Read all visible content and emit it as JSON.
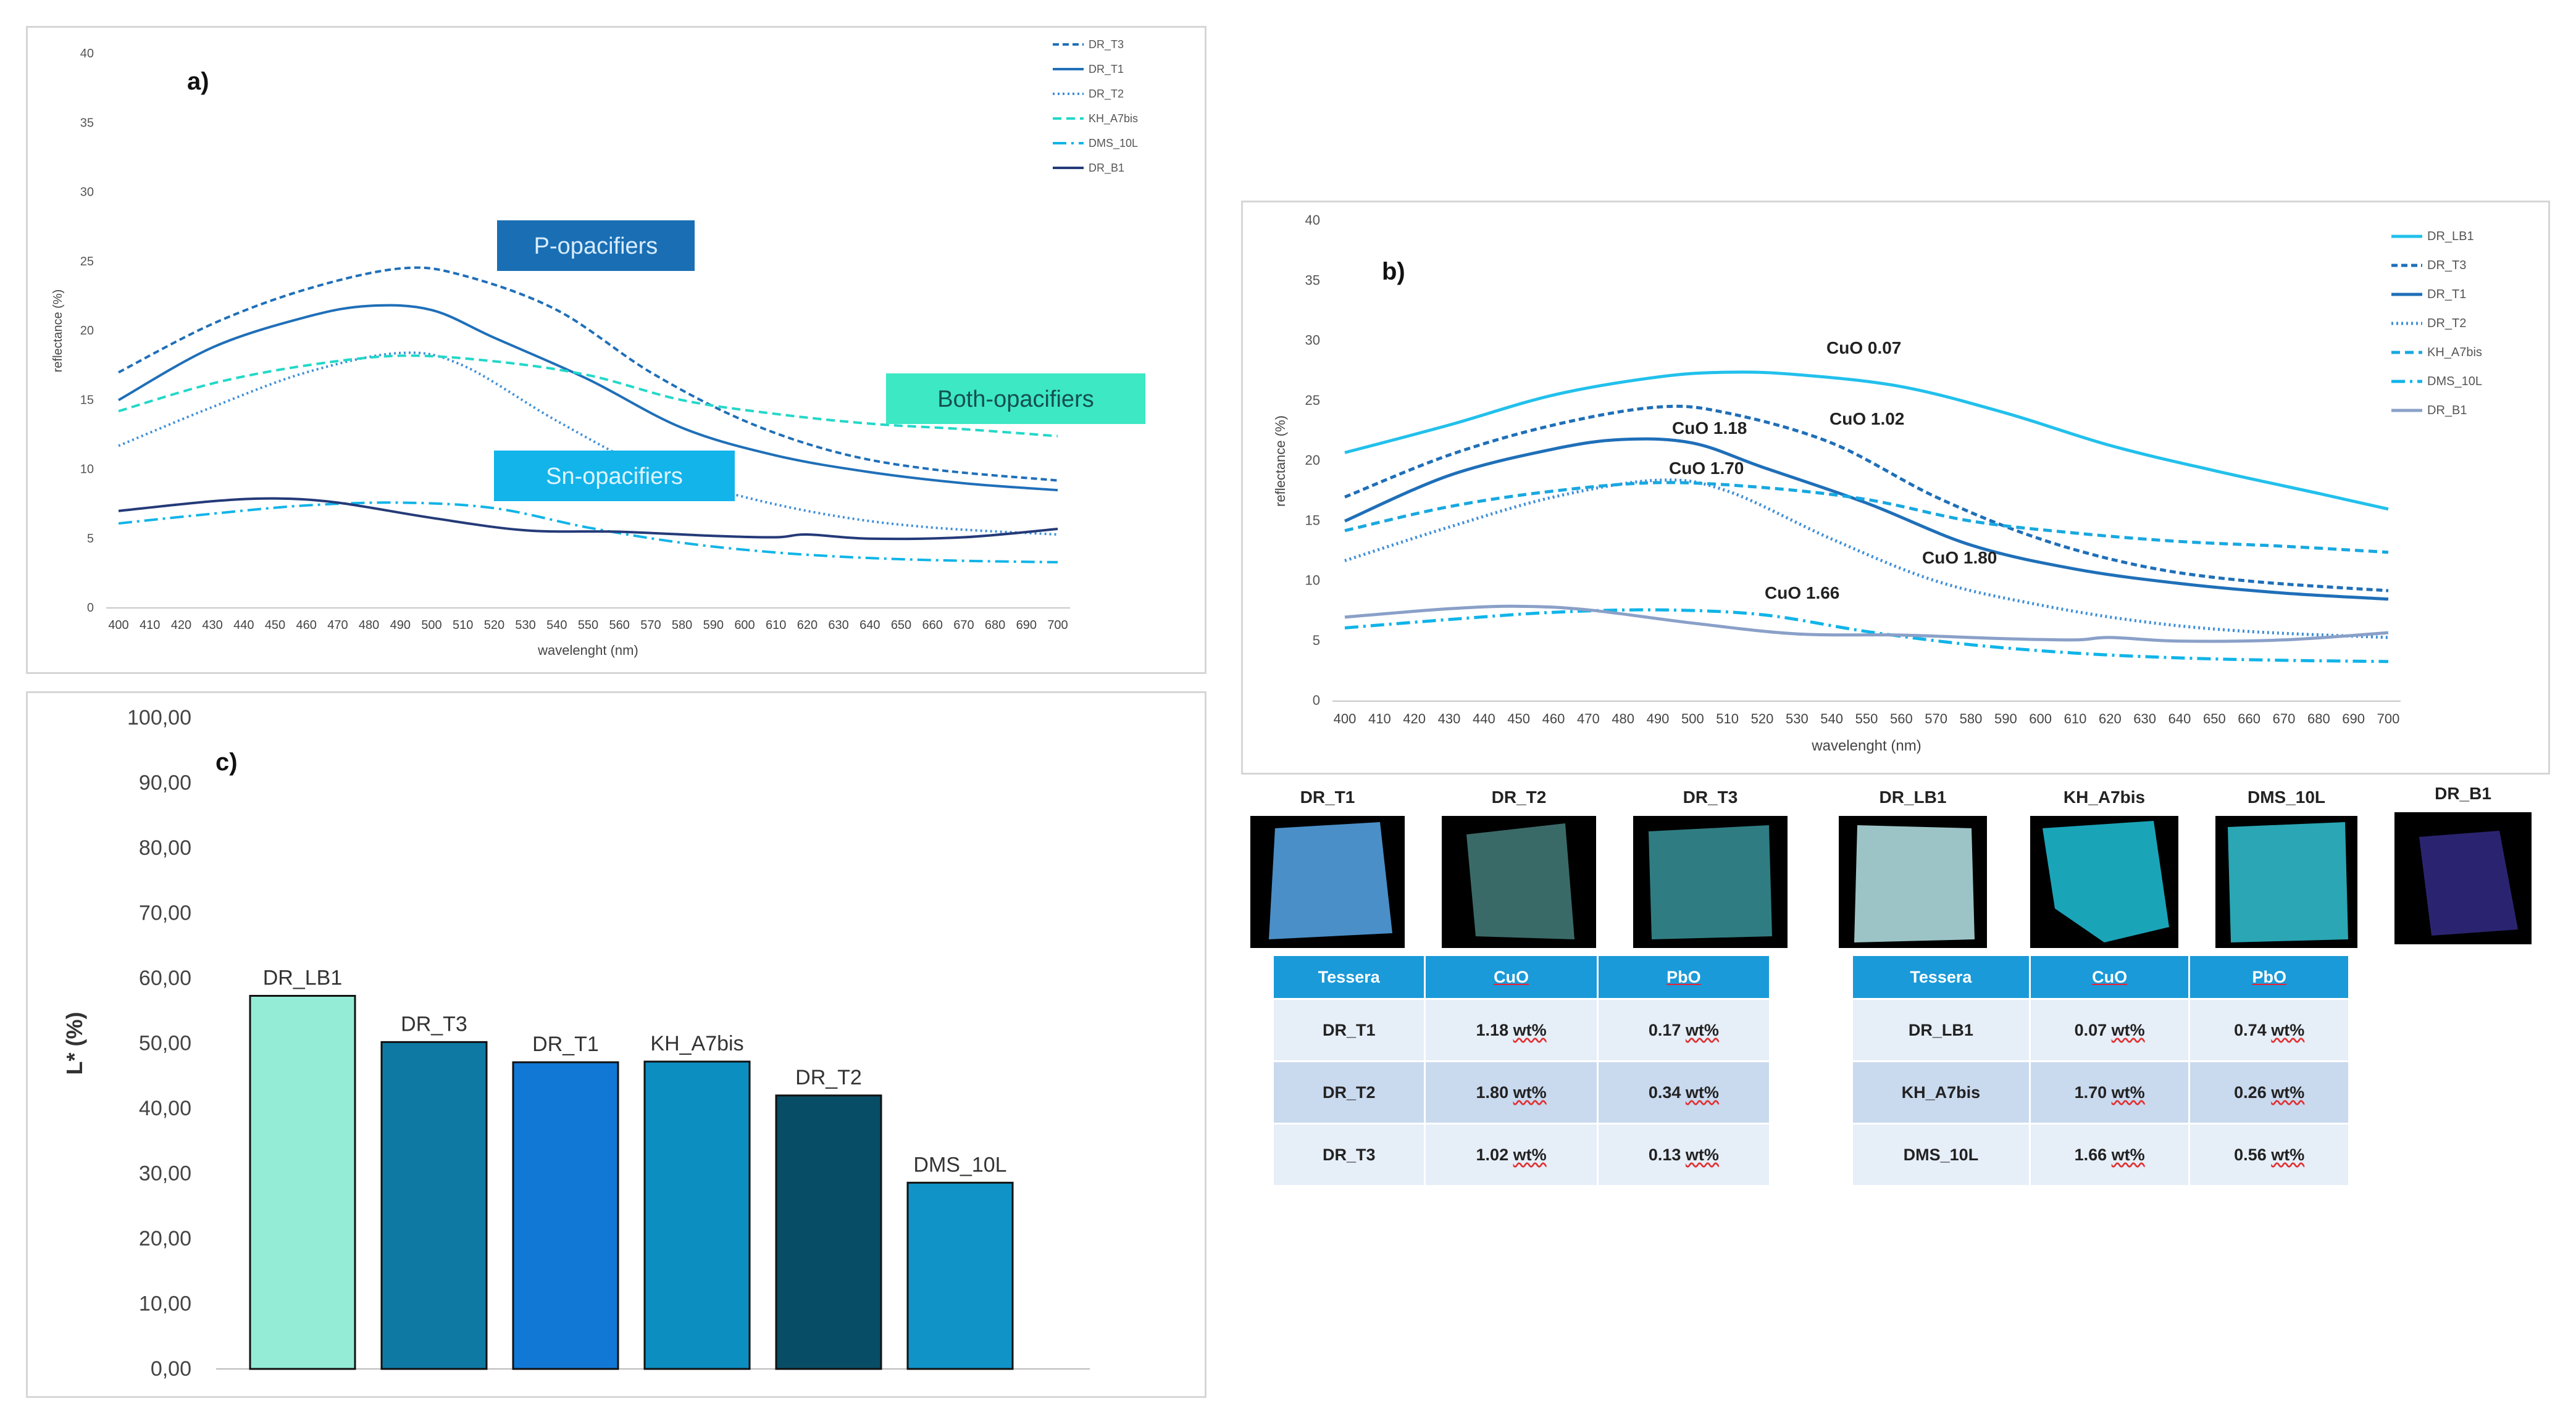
{
  "chart_data": [
    {
      "id": "a",
      "type": "line",
      "panel_label": "a)",
      "xlabel": "wavelenght (nm)",
      "ylabel": "reflectance (%)",
      "ylim": [
        0,
        40
      ],
      "yticks": [
        "0",
        "5",
        "10",
        "15",
        "20",
        "25",
        "30",
        "35",
        "40"
      ],
      "x": [
        400,
        410,
        420,
        430,
        440,
        450,
        460,
        470,
        480,
        490,
        500,
        510,
        520,
        530,
        540,
        550,
        560,
        570,
        580,
        590,
        600,
        610,
        620,
        630,
        640,
        650,
        660,
        670,
        680,
        690,
        700
      ],
      "legend": [
        "DR_T3",
        "DR_T1",
        "DR_T2",
        "KH_A7bis",
        "DMS_10L",
        "DR_B1"
      ],
      "annotations": [
        "P-opacifiers",
        "Both-opacifiers",
        "Sn-opacifiers"
      ],
      "series": [
        {
          "name": "DR_T3",
          "color": "#1f6fb8",
          "dash": "10 6",
          "values": [
            [
              400,
              17
            ],
            [
              430,
              20.5
            ],
            [
              460,
              23
            ],
            [
              490,
              24.5
            ],
            [
              510,
              24
            ],
            [
              540,
              21.5
            ],
            [
              570,
              17
            ],
            [
              600,
              13.5
            ],
            [
              630,
              11.2
            ],
            [
              660,
              10
            ],
            [
              700,
              9.2
            ]
          ]
        },
        {
          "name": "DR_T1",
          "color": "#1f6fb8",
          "dash": "",
          "values": [
            [
              400,
              15
            ],
            [
              430,
              18.8
            ],
            [
              460,
              21
            ],
            [
              480,
              21.8
            ],
            [
              500,
              21.5
            ],
            [
              520,
              19.5
            ],
            [
              550,
              16.5
            ],
            [
              580,
              13
            ],
            [
              610,
              11
            ],
            [
              640,
              9.8
            ],
            [
              670,
              9
            ],
            [
              700,
              8.5
            ]
          ]
        },
        {
          "name": "DR_T2",
          "color": "#3f8fd8",
          "dash": "3 5",
          "values": [
            [
              400,
              11.7
            ],
            [
              430,
              14.5
            ],
            [
              460,
              17
            ],
            [
              490,
              18.4
            ],
            [
              510,
              17.5
            ],
            [
              540,
              13.5
            ],
            [
              570,
              10
            ],
            [
              600,
              8
            ],
            [
              630,
              6.6
            ],
            [
              660,
              5.8
            ],
            [
              700,
              5.3
            ]
          ]
        },
        {
          "name": "KH_A7bis",
          "color": "#22d8c8",
          "dash": "14 8",
          "values": [
            [
              400,
              14.2
            ],
            [
              430,
              16.2
            ],
            [
              460,
              17.5
            ],
            [
              490,
              18.2
            ],
            [
              520,
              17.8
            ],
            [
              550,
              16.8
            ],
            [
              580,
              15
            ],
            [
              610,
              14
            ],
            [
              640,
              13.3
            ],
            [
              670,
              12.9
            ],
            [
              700,
              12.4
            ]
          ]
        },
        {
          "name": "DMS_10L",
          "color": "#10b4e8",
          "dash": "22 8 4 8",
          "values": [
            [
              400,
              6.1
            ],
            [
              430,
              6.8
            ],
            [
              460,
              7.4
            ],
            [
              490,
              7.6
            ],
            [
              520,
              7.2
            ],
            [
              550,
              5.8
            ],
            [
              580,
              4.7
            ],
            [
              610,
              4
            ],
            [
              640,
              3.6
            ],
            [
              670,
              3.4
            ],
            [
              700,
              3.3
            ]
          ]
        },
        {
          "name": "DR_B1",
          "color": "#243a78",
          "dash": "",
          "values": [
            [
              400,
              7
            ],
            [
              430,
              7.7
            ],
            [
              450,
              7.9
            ],
            [
              470,
              7.6
            ],
            [
              500,
              6.5
            ],
            [
              530,
              5.6
            ],
            [
              560,
              5.5
            ],
            [
              590,
              5.2
            ],
            [
              610,
              5.1
            ],
            [
              620,
              5.3
            ],
            [
              640,
              5
            ],
            [
              670,
              5.1
            ],
            [
              700,
              5.7
            ]
          ]
        }
      ]
    },
    {
      "id": "b",
      "type": "line",
      "panel_label": "b)",
      "xlabel": "wavelenght (nm)",
      "ylabel": "reflectance (%)",
      "ylim": [
        0,
        40
      ],
      "yticks": [
        "0",
        "5",
        "10",
        "15",
        "20",
        "25",
        "30",
        "35",
        "40"
      ],
      "x": [
        400,
        410,
        420,
        430,
        440,
        450,
        460,
        470,
        480,
        490,
        500,
        510,
        520,
        530,
        540,
        550,
        560,
        570,
        580,
        590,
        600,
        610,
        620,
        630,
        640,
        650,
        660,
        670,
        680,
        690,
        700
      ],
      "legend": [
        "DR_LB1",
        "DR_T3",
        "DR_T1",
        "DR_T2",
        "KH_A7bis",
        "DMS_10L",
        "DR_B1"
      ],
      "annotations": [
        "CuO 0.07",
        "CuO 1.02",
        "CuO 1.18",
        "CuO 1.70",
        "CuO 1.80",
        "CuO 1.66"
      ],
      "series": [
        {
          "name": "DR_LB1",
          "color": "#22c0ec",
          "dash": "",
          "values": [
            [
              400,
              20.7
            ],
            [
              430,
              23
            ],
            [
              460,
              25.5
            ],
            [
              490,
              27
            ],
            [
              510,
              27.4
            ],
            [
              530,
              27.2
            ],
            [
              560,
              26.2
            ],
            [
              590,
              24
            ],
            [
              620,
              21.3
            ],
            [
              650,
              19.2
            ],
            [
              680,
              17.3
            ],
            [
              700,
              16
            ]
          ]
        },
        {
          "name": "DR_T3",
          "color": "#1f6fb8",
          "dash": "10 6",
          "values": [
            [
              400,
              17
            ],
            [
              430,
              20.5
            ],
            [
              460,
              23
            ],
            [
              490,
              24.5
            ],
            [
              510,
              24
            ],
            [
              540,
              21.5
            ],
            [
              570,
              17
            ],
            [
              600,
              13.5
            ],
            [
              630,
              11.2
            ],
            [
              660,
              10
            ],
            [
              700,
              9.2
            ]
          ]
        },
        {
          "name": "DR_T1",
          "color": "#1f6fb8",
          "dash": "",
          "values": [
            [
              400,
              15
            ],
            [
              430,
              18.8
            ],
            [
              460,
              21
            ],
            [
              480,
              21.8
            ],
            [
              500,
              21.5
            ],
            [
              520,
              19.5
            ],
            [
              550,
              16.5
            ],
            [
              580,
              13
            ],
            [
              610,
              11
            ],
            [
              640,
              9.8
            ],
            [
              670,
              9
            ],
            [
              700,
              8.5
            ]
          ]
        },
        {
          "name": "DR_T2",
          "color": "#3f8fd8",
          "dash": "3 5",
          "values": [
            [
              400,
              11.7
            ],
            [
              430,
              14.5
            ],
            [
              460,
              17
            ],
            [
              490,
              18.4
            ],
            [
              510,
              17.5
            ],
            [
              540,
              13.5
            ],
            [
              570,
              10
            ],
            [
              600,
              8
            ],
            [
              630,
              6.6
            ],
            [
              660,
              5.8
            ],
            [
              700,
              5.3
            ]
          ]
        },
        {
          "name": "KH_A7bis",
          "color": "#18a8e0",
          "dash": "14 8",
          "values": [
            [
              400,
              14.2
            ],
            [
              430,
              16.2
            ],
            [
              460,
              17.5
            ],
            [
              490,
              18.2
            ],
            [
              520,
              17.8
            ],
            [
              550,
              16.8
            ],
            [
              580,
              15
            ],
            [
              610,
              14
            ],
            [
              640,
              13.3
            ],
            [
              670,
              12.9
            ],
            [
              700,
              12.4
            ]
          ]
        },
        {
          "name": "DMS_10L",
          "color": "#10b4e8",
          "dash": "22 8 4 8",
          "values": [
            [
              400,
              6.1
            ],
            [
              430,
              6.8
            ],
            [
              460,
              7.4
            ],
            [
              490,
              7.6
            ],
            [
              520,
              7.2
            ],
            [
              550,
              5.8
            ],
            [
              580,
              4.7
            ],
            [
              610,
              4
            ],
            [
              640,
              3.6
            ],
            [
              670,
              3.4
            ],
            [
              700,
              3.3
            ]
          ]
        },
        {
          "name": "DR_B1",
          "color": "#8aa0c8",
          "dash": "",
          "values": [
            [
              400,
              7
            ],
            [
              430,
              7.7
            ],
            [
              450,
              7.9
            ],
            [
              470,
              7.6
            ],
            [
              500,
              6.5
            ],
            [
              530,
              5.6
            ],
            [
              560,
              5.5
            ],
            [
              590,
              5.2
            ],
            [
              610,
              5.1
            ],
            [
              620,
              5.3
            ],
            [
              640,
              5
            ],
            [
              670,
              5.1
            ],
            [
              700,
              5.7
            ]
          ]
        }
      ]
    },
    {
      "id": "c",
      "type": "bar",
      "panel_label": "c)",
      "ylabel": "L* (%)",
      "ylim": [
        0,
        100
      ],
      "yticks": [
        "0,00",
        "10,00",
        "20,00",
        "30,00",
        "40,00",
        "50,00",
        "60,00",
        "70,00",
        "80,00",
        "90,00",
        "100,00"
      ],
      "categories": [
        "DR_LB1",
        "DR_T3",
        "DR_T1",
        "KH_A7bis",
        "DR_T2",
        "DMS_10L"
      ],
      "values": [
        57.3,
        50.2,
        47.1,
        47.2,
        42.0,
        28.6
      ],
      "colors": [
        "#94ecd6",
        "#0e7aa4",
        "#1178d6",
        "#0c8ec0",
        "#084d66",
        "#1093c6"
      ]
    }
  ],
  "tiles": [
    {
      "label": "DR_T1",
      "color": "#4a8fc8"
    },
    {
      "label": "DR_T2",
      "color": "#3a6a68"
    },
    {
      "label": "DR_T3",
      "color": "#2f7d82"
    },
    {
      "label": "DR_LB1",
      "color": "#9cc4c6"
    },
    {
      "label": "KH_A7bis",
      "color": "#1aa4b8"
    },
    {
      "label": "DMS_10L",
      "color": "#2aa6b4"
    },
    {
      "label": "DR_B1",
      "color": "#2a2470"
    }
  ],
  "table_left": {
    "headers": [
      "Tessera",
      "CuO",
      "PbO"
    ],
    "rows": [
      [
        "DR_T1",
        "1.18",
        "wt%",
        "0.17",
        "wt%"
      ],
      [
        "DR_T2",
        "1.80",
        "wt%",
        "0.34",
        "wt%"
      ],
      [
        "DR_T3",
        "1.02",
        "wt%",
        "0.13",
        "wt%"
      ]
    ]
  },
  "table_right": {
    "headers": [
      "Tessera",
      "CuO",
      "PbO"
    ],
    "rows": [
      [
        "DR_LB1",
        "0.07",
        "wt%",
        "0.74",
        "wt%"
      ],
      [
        "KH_A7bis",
        "1.70",
        "wt%",
        "0.26",
        "wt%"
      ],
      [
        "DMS_10L",
        "1.66",
        "wt%",
        "0.56",
        "wt%"
      ]
    ]
  }
}
